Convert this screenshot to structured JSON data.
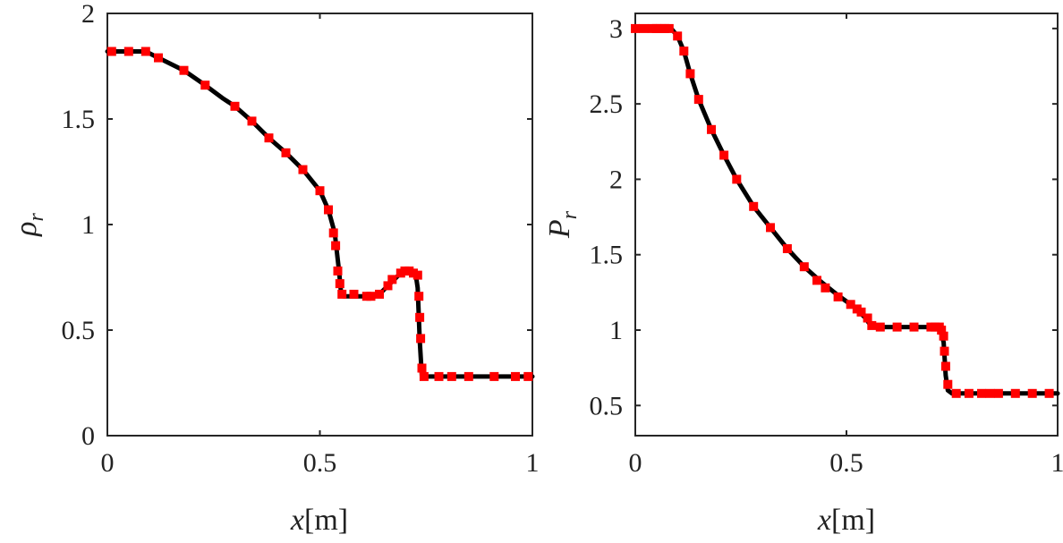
{
  "chart_data": [
    {
      "type": "line",
      "xlabel_var": "x",
      "xlabel_unit": "[m]",
      "ylabel_base": "ρ",
      "ylabel_sub": "r",
      "xlim": [
        0,
        1
      ],
      "ylim": [
        0,
        2
      ],
      "xticks": [
        0,
        0.5,
        1
      ],
      "xtick_labels": [
        "0",
        "0.5",
        "1"
      ],
      "yticks": [
        0,
        0.5,
        1,
        1.5,
        2
      ],
      "ytick_labels": [
        "0",
        "0.5",
        "1",
        "1.5",
        "2"
      ],
      "grid": false,
      "series": [
        {
          "style": "line",
          "color": "#000000",
          "x": [
            0,
            0.05,
            0.09,
            0.12,
            0.18,
            0.23,
            0.27,
            0.3,
            0.34,
            0.38,
            0.42,
            0.46,
            0.5,
            0.52,
            0.535,
            0.545,
            0.55,
            0.555,
            0.57,
            0.6,
            0.64,
            0.67,
            0.69,
            0.71,
            0.725,
            0.73,
            0.735,
            0.74,
            0.75,
            0.8,
            0.9,
            1
          ],
          "y": [
            1.82,
            1.82,
            1.82,
            1.79,
            1.73,
            1.66,
            1.6,
            1.56,
            1.49,
            1.41,
            1.34,
            1.26,
            1.16,
            1.07,
            0.96,
            0.78,
            0.67,
            0.66,
            0.66,
            0.66,
            0.67,
            0.73,
            0.77,
            0.78,
            0.77,
            0.7,
            0.45,
            0.28,
            0.28,
            0.28,
            0.28,
            0.28
          ]
        },
        {
          "style": "markers",
          "marker": "square",
          "color": "#ff0000",
          "x": [
            0.01,
            0.05,
            0.09,
            0.12,
            0.18,
            0.23,
            0.3,
            0.34,
            0.38,
            0.42,
            0.46,
            0.5,
            0.52,
            0.532,
            0.537,
            0.542,
            0.547,
            0.552,
            0.58,
            0.61,
            0.62,
            0.64,
            0.66,
            0.67,
            0.69,
            0.7,
            0.71,
            0.72,
            0.73,
            0.733,
            0.735,
            0.737,
            0.74,
            0.745,
            0.78,
            0.81,
            0.85,
            0.91,
            0.96,
            0.99
          ],
          "y": [
            1.82,
            1.82,
            1.82,
            1.79,
            1.73,
            1.66,
            1.56,
            1.49,
            1.41,
            1.34,
            1.26,
            1.16,
            1.07,
            0.96,
            0.9,
            0.78,
            0.72,
            0.67,
            0.67,
            0.66,
            0.66,
            0.67,
            0.71,
            0.74,
            0.77,
            0.78,
            0.78,
            0.77,
            0.76,
            0.66,
            0.56,
            0.46,
            0.32,
            0.28,
            0.28,
            0.28,
            0.28,
            0.28,
            0.28,
            0.28
          ]
        }
      ]
    },
    {
      "type": "line",
      "xlabel_var": "x",
      "xlabel_unit": "[m]",
      "ylabel_base": "P",
      "ylabel_sub": "r",
      "xlim": [
        0,
        1
      ],
      "ylim": [
        0.3,
        3.1
      ],
      "xticks": [
        0,
        0.5,
        1
      ],
      "xtick_labels": [
        "0",
        "0.5",
        "1"
      ],
      "yticks": [
        0.5,
        1,
        1.5,
        2,
        2.5,
        3
      ],
      "ytick_labels": [
        "0.5",
        "1",
        "1.5",
        "2",
        "2.5",
        "3"
      ],
      "grid": false,
      "series": [
        {
          "style": "line",
          "color": "#000000",
          "x": [
            0,
            0.085,
            0.1,
            0.115,
            0.13,
            0.15,
            0.18,
            0.21,
            0.24,
            0.28,
            0.32,
            0.36,
            0.4,
            0.44,
            0.48,
            0.52,
            0.545,
            0.56,
            0.6,
            0.65,
            0.7,
            0.72,
            0.73,
            0.735,
            0.74,
            0.75,
            0.8,
            0.9,
            1
          ],
          "y": [
            3,
            3,
            2.95,
            2.85,
            2.7,
            2.53,
            2.33,
            2.16,
            2.0,
            1.82,
            1.68,
            1.54,
            1.42,
            1.32,
            1.23,
            1.15,
            1.08,
            1.02,
            1.02,
            1.02,
            1.02,
            1.02,
            0.92,
            0.7,
            0.6,
            0.58,
            0.58,
            0.58,
            0.58
          ]
        },
        {
          "style": "markers",
          "marker": "square",
          "color": "#ff0000",
          "x": [
            0.0,
            0.02,
            0.04,
            0.05,
            0.06,
            0.07,
            0.08,
            0.1,
            0.115,
            0.13,
            0.15,
            0.18,
            0.21,
            0.24,
            0.28,
            0.32,
            0.36,
            0.4,
            0.43,
            0.45,
            0.48,
            0.51,
            0.525,
            0.535,
            0.55,
            0.56,
            0.58,
            0.62,
            0.66,
            0.7,
            0.71,
            0.72,
            0.725,
            0.73,
            0.732,
            0.735,
            0.74,
            0.76,
            0.79,
            0.82,
            0.84,
            0.86,
            0.9,
            0.94,
            0.98
          ],
          "y": [
            3,
            3,
            3,
            3,
            3,
            3,
            3,
            2.95,
            2.85,
            2.7,
            2.53,
            2.33,
            2.16,
            2.0,
            1.82,
            1.68,
            1.54,
            1.42,
            1.33,
            1.28,
            1.22,
            1.17,
            1.14,
            1.12,
            1.08,
            1.03,
            1.02,
            1.02,
            1.02,
            1.02,
            1.02,
            1.02,
            1.0,
            0.96,
            0.86,
            0.76,
            0.64,
            0.58,
            0.58,
            0.58,
            0.58,
            0.58,
            0.58,
            0.58,
            0.58
          ]
        }
      ]
    }
  ]
}
